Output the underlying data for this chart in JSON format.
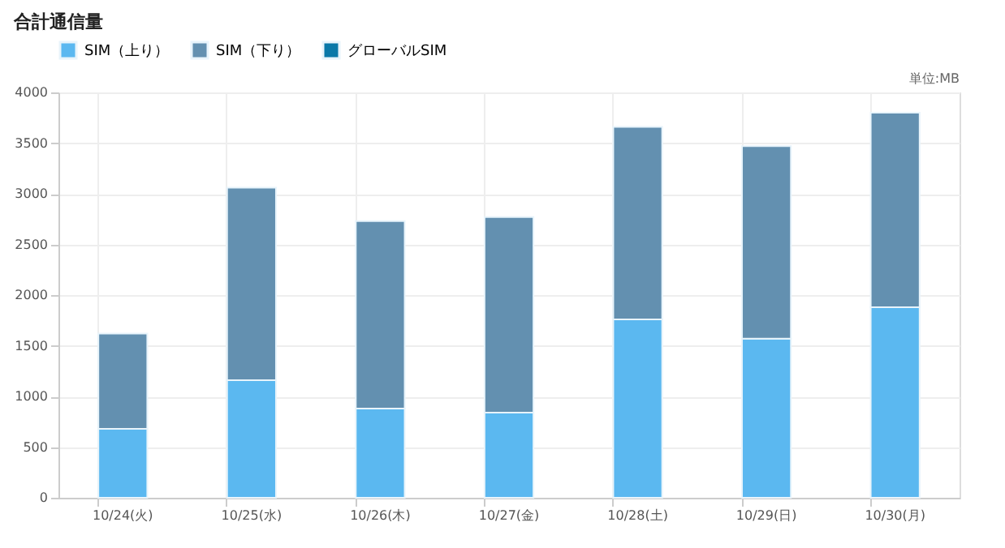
{
  "chart_data": {
    "type": "bar",
    "title": "合計通信量",
    "annotations": [
      "単位:MB"
    ],
    "categories": [
      "10/24(火)",
      "10/25(水)",
      "10/26(木)",
      "10/27(金)",
      "10/28(土)",
      "10/29(日)",
      "10/30(月)"
    ],
    "series": [
      {
        "name": "SIM（上り）",
        "color": "#5bb8f0",
        "values": [
          680,
          1160,
          880,
          840,
          1760,
          1570,
          1880
        ]
      },
      {
        "name": "SIM（下り）",
        "color": "#6390b0",
        "values": [
          940,
          1900,
          1850,
          1930,
          1900,
          1900,
          1920
        ]
      },
      {
        "name": "グローバルSIM",
        "color": "#0a78a8",
        "values": [
          null,
          null,
          null,
          null,
          null,
          null,
          null
        ]
      }
    ],
    "stacked": true,
    "ylim": [
      0,
      4000
    ],
    "yticks": [
      0,
      500,
      1000,
      1500,
      2000,
      2500,
      3000,
      3500,
      4000
    ],
    "grid": true,
    "legend": "top"
  }
}
